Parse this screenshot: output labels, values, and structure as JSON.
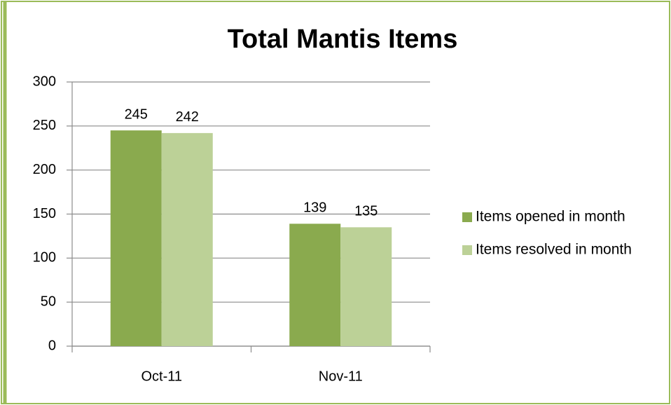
{
  "chart_data": {
    "type": "bar",
    "title": "Total Mantis Items",
    "categories": [
      "Oct-11",
      "Nov-11"
    ],
    "series": [
      {
        "name": "Items opened in month",
        "color": "#8aaa4e",
        "values": [
          245,
          139
        ]
      },
      {
        "name": "Items resolved in month",
        "color": "#bcd197",
        "values": [
          242,
          135
        ]
      }
    ],
    "ylim": [
      0,
      300
    ],
    "yticks": [
      0,
      50,
      100,
      150,
      200,
      250,
      300
    ],
    "grid": true,
    "legend": "right"
  }
}
